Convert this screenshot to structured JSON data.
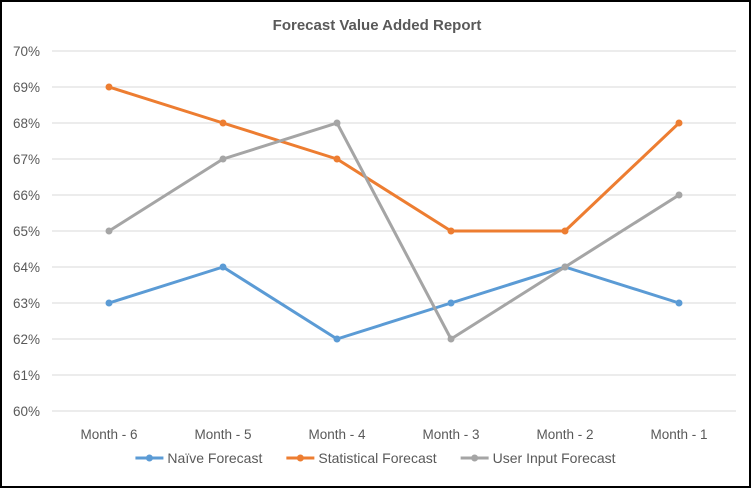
{
  "chart_data": {
    "type": "line",
    "title": "Forecast Value Added Report",
    "xlabel": "",
    "ylabel": "",
    "categories": [
      "Month - 6",
      "Month - 5",
      "Month - 4",
      "Month - 3",
      "Month - 2",
      "Month - 1"
    ],
    "ylim": [
      60,
      70
    ],
    "y_ticks": [
      "60%",
      "61%",
      "62%",
      "63%",
      "64%",
      "65%",
      "66%",
      "67%",
      "68%",
      "69%",
      "70%"
    ],
    "grid": true,
    "legend_position": "bottom",
    "series": [
      {
        "name": "Naïve Forecast",
        "color": "#5b9bd5",
        "values": [
          63,
          64,
          62,
          63,
          64,
          63
        ]
      },
      {
        "name": "Statistical Forecast",
        "color": "#ed7d31",
        "values": [
          69,
          68,
          67,
          65,
          65,
          68
        ]
      },
      {
        "name": "User Input Forecast",
        "color": "#a5a5a5",
        "values": [
          65,
          67,
          68,
          62,
          64,
          66
        ]
      }
    ]
  }
}
